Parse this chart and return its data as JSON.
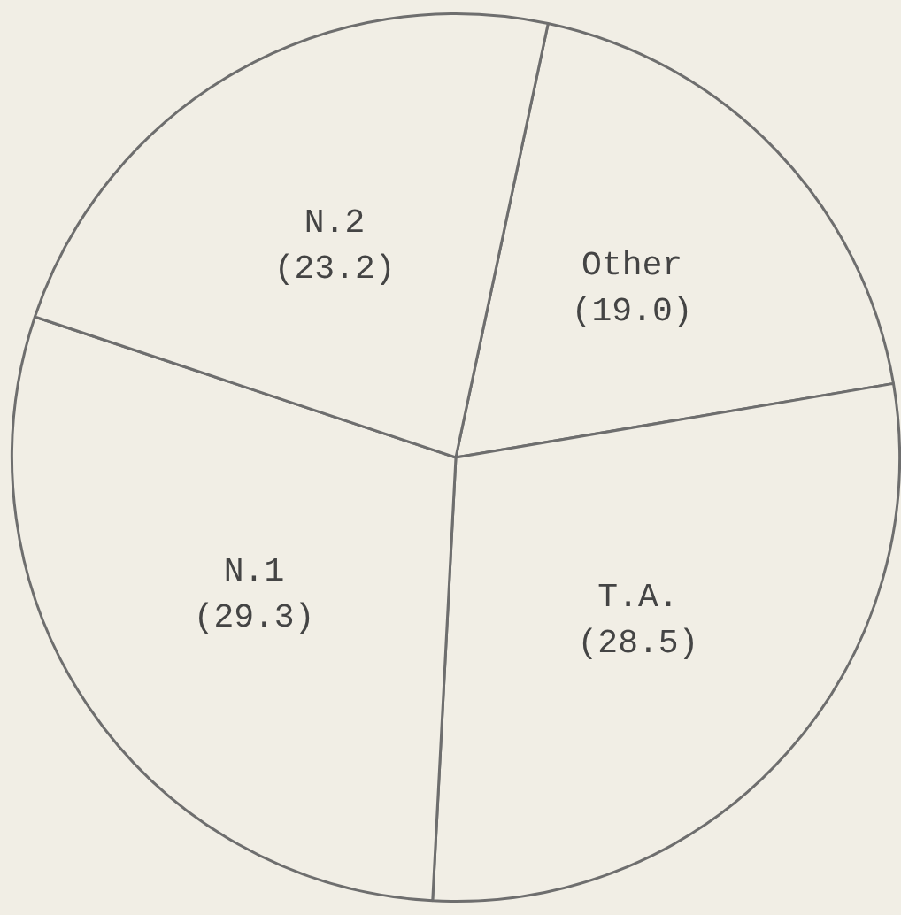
{
  "chart_data": {
    "type": "pie",
    "categories": [
      "Other",
      "T.A.",
      "N.1",
      "N.2"
    ],
    "values": [
      19.0,
      28.5,
      29.3,
      23.2
    ],
    "colors": [
      "#f1eee5",
      "#f1eee5",
      "#f1eee5",
      "#f1eee5"
    ],
    "value_labels": [
      "(19.0)",
      "(28.5)",
      "(29.3)",
      "(23.2)"
    ],
    "legend": false
  }
}
